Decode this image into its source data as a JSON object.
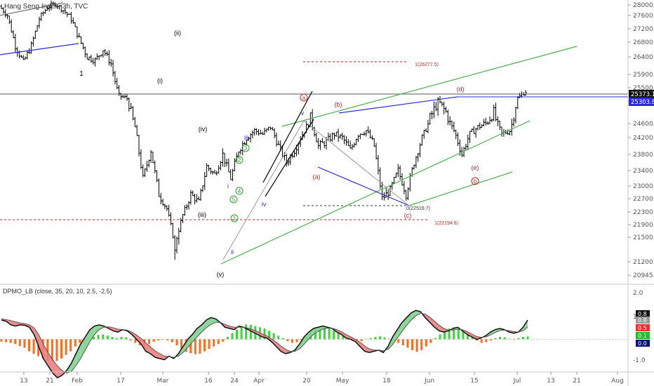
{
  "symbol_title": "Hang Seng Index, 3h, TVC",
  "indicator_title": "DPMO_LB (close, 35, 20, 10, 2.5, -2.5)",
  "chart_data": {
    "type": "candlestick",
    "title": "Hang Seng Index, 3h, TVC",
    "ylim": [
      20800,
      28200
    ],
    "y_ticks": [
      "28000.0",
      "27600.0",
      "27200.0",
      "26800.0",
      "26400.0",
      "25900.0",
      "25500.0",
      "25000.0",
      "24600.0",
      "24200.0",
      "23800.0",
      "23400.0",
      "23000.0",
      "22700.0",
      "22300.0",
      "21900.0",
      "21500.0",
      "21200.0",
      "20945.0"
    ],
    "x_ticks": [
      "13",
      "21",
      "Feb",
      "10",
      "17",
      "Mar",
      "16",
      "24",
      "Apr",
      "20",
      "May",
      "18",
      "Jun",
      "15",
      "21",
      "Jul",
      "13",
      "21",
      "Aug"
    ],
    "last_price": "25373.1",
    "second_price": "25303.8",
    "price_path": [
      {
        "d": "Jan 27",
        "c": 27950
      },
      {
        "d": "Jan 29",
        "c": 27600
      },
      {
        "d": "Jan 31",
        "c": 26700
      },
      {
        "d": "Feb 3",
        "c": 26250
      },
      {
        "d": "Feb 5",
        "c": 26700
      },
      {
        "d": "Feb 7",
        "c": 27500
      },
      {
        "d": "Feb 10",
        "c": 27900
      },
      {
        "d": "Feb 12",
        "c": 28050
      },
      {
        "d": "Feb 14",
        "c": 27800
      },
      {
        "d": "Feb 17",
        "c": 27500
      },
      {
        "d": "Feb 19",
        "c": 26900
      },
      {
        "d": "Feb 21",
        "c": 26400
      },
      {
        "d": "Feb 24",
        "c": 26300
      },
      {
        "d": "Feb 26",
        "c": 26600
      },
      {
        "d": "Feb 28",
        "c": 26200
      },
      {
        "d": "Mar 2",
        "c": 25200
      },
      {
        "d": "Mar 4",
        "c": 25100
      },
      {
        "d": "Mar 6",
        "c": 24500
      },
      {
        "d": "Mar 9",
        "c": 23200
      },
      {
        "d": "Mar 11",
        "c": 23900
      },
      {
        "d": "Mar 13",
        "c": 22800
      },
      {
        "d": "Mar 16",
        "c": 22400
      },
      {
        "d": "Mar 18",
        "c": 21300
      },
      {
        "d": "Mar 20",
        "c": 22200
      },
      {
        "d": "Mar 23",
        "c": 22800
      },
      {
        "d": "Mar 25",
        "c": 22600
      },
      {
        "d": "Mar 27",
        "c": 23500
      },
      {
        "d": "Mar 30",
        "c": 23300
      },
      {
        "d": "Apr 1",
        "c": 23800
      },
      {
        "d": "Apr 3",
        "c": 23200
      },
      {
        "d": "Apr 6",
        "c": 23900
      },
      {
        "d": "Apr 8",
        "c": 24200
      },
      {
        "d": "Apr 10",
        "c": 24400
      },
      {
        "d": "Apr 14",
        "c": 24300
      },
      {
        "d": "Apr 16",
        "c": 24500
      },
      {
        "d": "Apr 20",
        "c": 24000
      },
      {
        "d": "Apr 22",
        "c": 23600
      },
      {
        "d": "Apr 24",
        "c": 23900
      },
      {
        "d": "Apr 27",
        "c": 24300
      },
      {
        "d": "Apr 29",
        "c": 24700
      },
      {
        "d": "May 4",
        "c": 24000
      },
      {
        "d": "May 6",
        "c": 24100
      },
      {
        "d": "May 8",
        "c": 24300
      },
      {
        "d": "May 11",
        "c": 24200
      },
      {
        "d": "May 13",
        "c": 23900
      },
      {
        "d": "May 15",
        "c": 24300
      },
      {
        "d": "May 18",
        "c": 24400
      },
      {
        "d": "May 20",
        "c": 24000
      },
      {
        "d": "May 22",
        "c": 22700
      },
      {
        "d": "May 25",
        "c": 22900
      },
      {
        "d": "May 27",
        "c": 23400
      },
      {
        "d": "May 29",
        "c": 22800
      },
      {
        "d": "Jun 1",
        "c": 23600
      },
      {
        "d": "Jun 3",
        "c": 24200
      },
      {
        "d": "Jun 5",
        "c": 24700
      },
      {
        "d": "Jun 8",
        "c": 25000
      },
      {
        "d": "Jun 10",
        "c": 24800
      },
      {
        "d": "Jun 12",
        "c": 24400
      },
      {
        "d": "Jun 15",
        "c": 23800
      },
      {
        "d": "Jun 17",
        "c": 24300
      },
      {
        "d": "Jun 19",
        "c": 24500
      },
      {
        "d": "Jun 22",
        "c": 24600
      },
      {
        "d": "Jun 24",
        "c": 24800
      },
      {
        "d": "Jun 26",
        "c": 24300
      },
      {
        "d": "Jun 29",
        "c": 24400
      },
      {
        "d": "Jul 2",
        "c": 25100
      },
      {
        "d": "Jul 3",
        "c": 25373
      }
    ],
    "annotations": {
      "waves_black": [
        "1",
        "(i)",
        "(ii)",
        "(iii)",
        "(iv)",
        "(v)"
      ],
      "waves_blue": [
        "i",
        "ii",
        "iii",
        "iv",
        "v"
      ],
      "waves_green_circle": [
        "1",
        "2",
        "3",
        "4",
        "5"
      ],
      "waves_red": [
        "(a)",
        "(b)",
        "(c)",
        "(d)",
        "(e)"
      ],
      "waves_red_circle": [
        "a",
        "b"
      ],
      "levels": [
        "1(26277.5)",
        "0(22519.7)",
        "1(22194.8)"
      ]
    }
  },
  "indicator": {
    "name": "DPMO_LB",
    "ylim": [
      -1.3,
      2.2
    ],
    "y_ticks": [
      "2.0",
      "1.0",
      "-1.0"
    ],
    "badges": [
      {
        "text": "0.8",
        "bg": "#111111",
        "fg": "#ffffff"
      },
      {
        "text": "0.8",
        "bg": "#999999",
        "fg": "#ffffff"
      },
      {
        "text": "0.5",
        "bg": "#ff2a2a",
        "fg": "#ffffff"
      },
      {
        "text": "0.1",
        "bg": "#22bb22",
        "fg": "#ffffff"
      },
      {
        "text": "0.0",
        "bg": "#0b0b7a",
        "fg": "#ffffff"
      }
    ],
    "histogram": [
      -0.1,
      -0.12,
      -0.15,
      -0.2,
      -0.28,
      -0.35,
      -0.5,
      -0.6,
      -0.7,
      -0.8,
      -0.9,
      -0.95,
      -0.9,
      -0.8,
      -0.65,
      -0.5,
      -0.3,
      -0.15,
      -0.05,
      0.05,
      0.1,
      0.18,
      0.2,
      0.15,
      0.1,
      0.05,
      0.1,
      0.08,
      -0.05,
      -0.15,
      -0.25,
      -0.3,
      -0.2,
      -0.1,
      -0.05,
      0.02,
      -0.05,
      -0.12,
      -0.25,
      -0.4,
      -0.52,
      -0.58,
      -0.62,
      -0.6,
      -0.5,
      -0.4,
      -0.3,
      -0.2,
      -0.1,
      0.1,
      0.25,
      0.4,
      0.55,
      0.62,
      0.6,
      0.55,
      0.5,
      0.45,
      0.35,
      0.25,
      0.15,
      0.05,
      -0.08,
      -0.15,
      -0.12,
      -0.05,
      0.1,
      0.25,
      0.4,
      0.5,
      0.5,
      0.45,
      0.35,
      0.25,
      0.15,
      0.05,
      -0.05,
      -0.1,
      -0.08,
      0.02,
      0.05,
      0.1,
      0.12,
      0.08,
      0.02,
      -0.05,
      -0.15,
      -0.25,
      -0.35,
      -0.45,
      -0.52,
      -0.45,
      -0.3,
      -0.15,
      0.05,
      0.2,
      0.35,
      0.45,
      0.5,
      0.45,
      0.35,
      0.2,
      0.1,
      -0.05,
      -0.15,
      -0.12,
      -0.05,
      0.05,
      0.1,
      0.08,
      0.02,
      -0.02,
      0.05,
      0.1,
      0.12
    ],
    "dpmo": [
      0.8,
      0.75,
      0.6,
      0.55,
      0.6,
      0.58,
      0.5,
      0.2,
      -0.3,
      -0.8,
      -1.1,
      -1.4,
      -1.6,
      -1.5,
      -1.3,
      -1.0,
      -0.6,
      -0.2,
      0.1,
      0.4,
      0.55,
      0.6,
      0.55,
      0.45,
      0.35,
      0.3,
      0.4,
      0.35,
      0.2,
      0.0,
      -0.2,
      -0.5,
      -0.6,
      -0.75,
      -0.8,
      -0.85,
      -0.7,
      -0.8,
      -0.6,
      -0.3,
      0.0,
      0.2,
      0.45,
      0.6,
      0.8,
      0.9,
      0.85,
      0.7,
      0.5,
      0.45,
      0.4,
      0.55,
      0.5,
      0.4,
      0.3,
      0.2,
      0.1,
      0.05,
      -0.1,
      -0.3,
      -0.5,
      -0.6,
      -0.55,
      -0.45,
      -0.2,
      0.1,
      0.3,
      0.45,
      0.5,
      0.55,
      0.5,
      0.45,
      0.3,
      0.2,
      0.05,
      0.0,
      -0.1,
      -0.3,
      -0.5,
      -0.55,
      -0.5,
      -0.45,
      -0.55,
      -0.3,
      0.1,
      0.4,
      0.7,
      0.9,
      1.1,
      1.2,
      1.15,
      0.9,
      0.7,
      0.5,
      0.35,
      0.3,
      0.35,
      0.45,
      0.5,
      0.35,
      0.2,
      0.1,
      0.0,
      0.05,
      0.15,
      0.3,
      0.4,
      0.45,
      0.4,
      0.3,
      0.25,
      0.3,
      0.5,
      0.8
    ],
    "signal": [
      0.85,
      0.82,
      0.78,
      0.72,
      0.68,
      0.65,
      0.6,
      0.48,
      0.2,
      -0.2,
      -0.55,
      -0.85,
      -1.1,
      -1.3,
      -1.4,
      -1.35,
      -1.1,
      -0.8,
      -0.45,
      -0.1,
      0.2,
      0.4,
      0.5,
      0.52,
      0.48,
      0.42,
      0.4,
      0.38,
      0.3,
      0.18,
      0.03,
      -0.15,
      -0.32,
      -0.48,
      -0.6,
      -0.7,
      -0.72,
      -0.75,
      -0.7,
      -0.55,
      -0.35,
      -0.12,
      0.1,
      0.3,
      0.48,
      0.62,
      0.7,
      0.7,
      0.62,
      0.55,
      0.5,
      0.5,
      0.5,
      0.46,
      0.4,
      0.32,
      0.22,
      0.14,
      0.02,
      -0.12,
      -0.28,
      -0.42,
      -0.5,
      -0.5,
      -0.4,
      -0.2,
      0.02,
      0.2,
      0.33,
      0.42,
      0.46,
      0.46,
      0.4,
      0.32,
      0.2,
      0.1,
      0.0,
      -0.12,
      -0.28,
      -0.4,
      -0.45,
      -0.45,
      -0.48,
      -0.42,
      -0.22,
      0.05,
      0.32,
      0.58,
      0.8,
      0.98,
      1.08,
      1.05,
      0.92,
      0.75,
      0.58,
      0.45,
      0.38,
      0.38,
      0.42,
      0.4,
      0.32,
      0.22,
      0.12,
      0.08,
      0.1,
      0.18,
      0.28,
      0.36,
      0.38,
      0.36,
      0.32,
      0.3,
      0.35,
      0.5
    ]
  }
}
